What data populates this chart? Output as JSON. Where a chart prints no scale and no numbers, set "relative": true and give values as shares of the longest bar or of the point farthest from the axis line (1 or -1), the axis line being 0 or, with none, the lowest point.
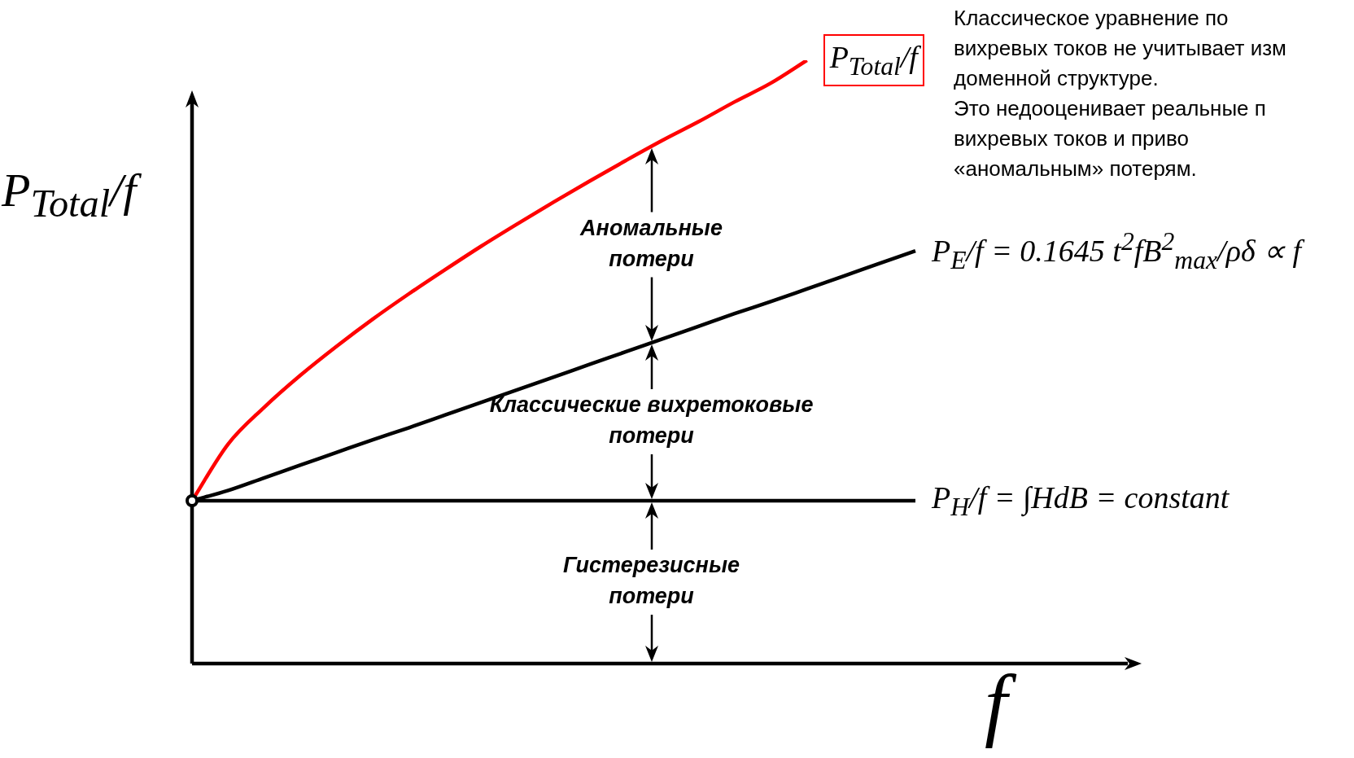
{
  "chart_data": {
    "type": "line",
    "relative": true,
    "xlabel": "f",
    "ylabel": "P$_{Total}$/f",
    "legend": false,
    "marker": "none",
    "line_style": "solid",
    "categories": [
      null,
      null,
      null,
      null,
      null,
      null,
      null,
      null,
      null,
      null,
      null,
      null,
      null,
      null,
      null,
      null,
      null,
      null,
      null,
      null,
      null
    ],
    "series": [
      {
        "name": "P$_{Total}$/f",
        "color": "#ff0000",
        "values": [
          0.27,
          0.364,
          0.425,
          0.478,
          0.526,
          0.571,
          0.613,
          0.653,
          0.692,
          0.729,
          0.765,
          0.8,
          0.834,
          0.867,
          0.898,
          0.931,
          0.962,
          1,
          null,
          null,
          null
        ]
      },
      {
        "name": "P$_{E}$/f = 0.1645 t$^{2}$fB$^{2}$$_{max}$/ρδ ∝ f",
        "color": "#000000",
        "values": [
          0.27,
          0.287,
          0.308,
          0.329,
          0.35,
          0.371,
          0.391,
          0.412,
          0.433,
          0.454,
          0.475,
          0.496,
          0.517,
          0.538,
          0.559,
          0.58,
          0.6,
          0.621,
          0.642,
          0.663,
          0.684
        ]
      },
      {
        "name": "P$_{H}$/f = ∫HdB = constant",
        "color": "#000000",
        "values": [
          0.27,
          0.27,
          0.27,
          0.27,
          0.27,
          0.27,
          0.27,
          0.27,
          0.27,
          0.27,
          0.27,
          0.27,
          0.27,
          0.27,
          0.27,
          0.27,
          0.27,
          0.27,
          0.27,
          0.27,
          0.27
        ]
      }
    ],
    "annotations": [
      "Аномальные\nпотери",
      "Классические вихретоковые\nпотери",
      "Гистерезисные\nпотери",
      "Классическое уравнение по\nвихревых токов не учитывает изм\nдоменной структуре.\nЭто недооценивает реальные п\nвихревых токов и приво\n«аномальным» потерям."
    ]
  }
}
